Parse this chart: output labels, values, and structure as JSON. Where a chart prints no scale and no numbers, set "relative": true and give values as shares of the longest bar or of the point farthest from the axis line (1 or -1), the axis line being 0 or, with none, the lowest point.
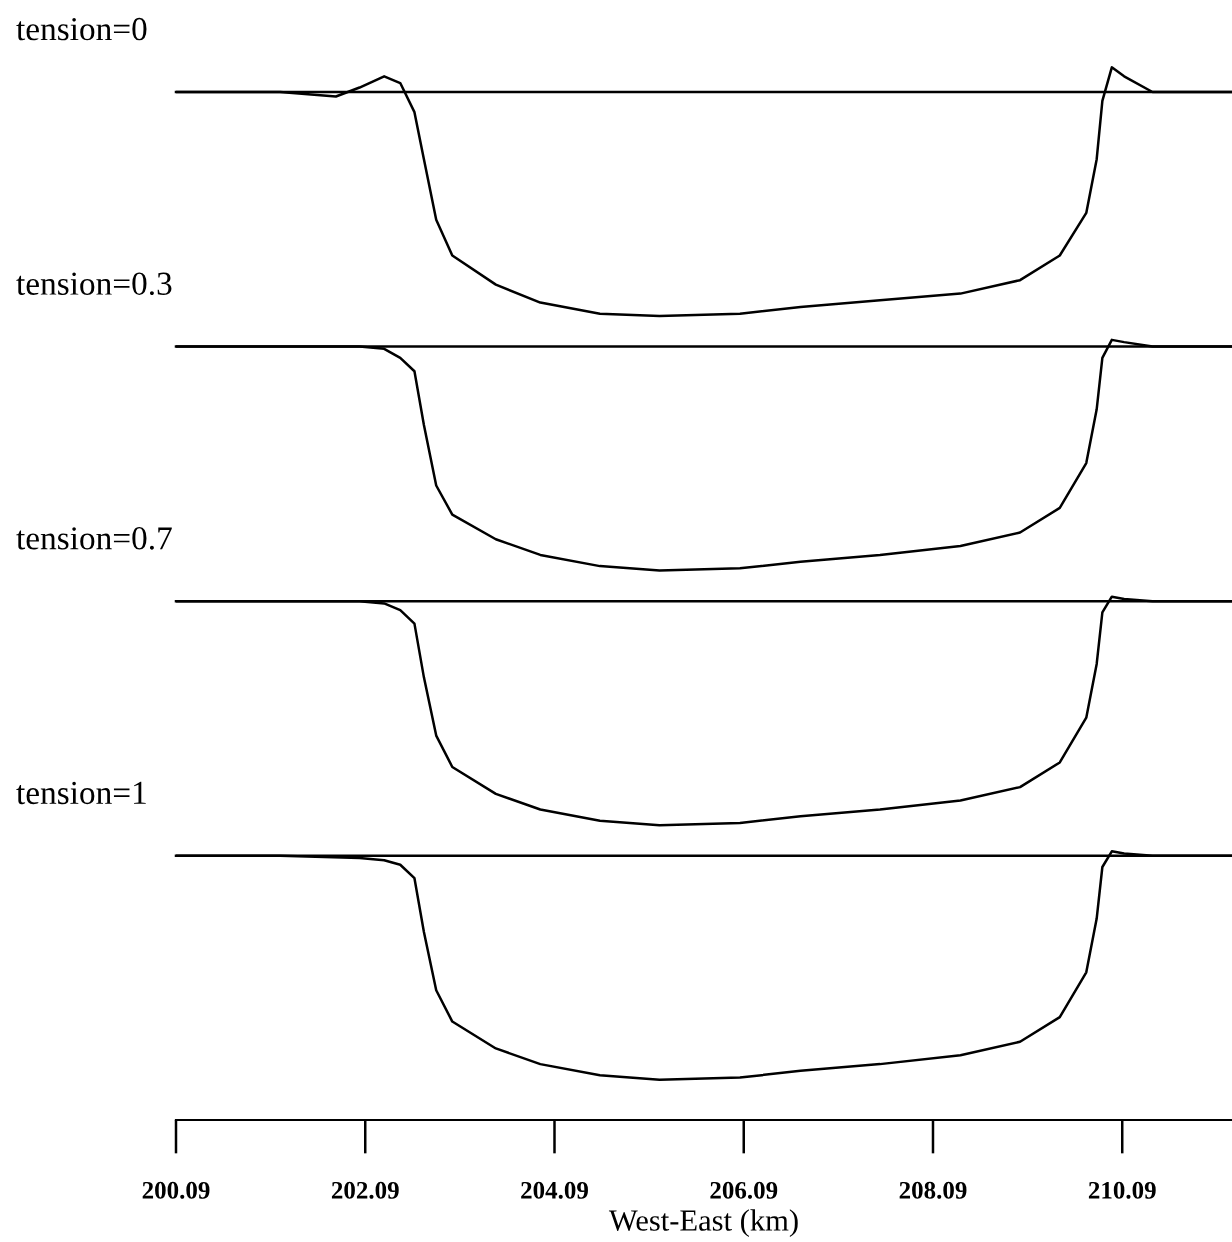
{
  "chart_data": [
    {
      "type": "line",
      "title": "tension=0",
      "relative": true,
      "color": "#000000",
      "xlim": [
        200.09,
        211.25
      ],
      "tick_labels": false,
      "x": [
        200.09,
        201.19,
        201.78,
        202.03,
        202.29,
        202.46,
        202.61,
        202.71,
        202.84,
        203.01,
        203.47,
        203.94,
        204.57,
        205.2,
        206.05,
        206.69,
        207.53,
        208.38,
        209.01,
        209.43,
        209.71,
        209.82,
        209.88,
        209.98,
        210.11,
        210.41,
        211.25
      ],
      "values": [
        0,
        0,
        -0.02,
        0.02,
        0.07,
        0.04,
        -0.09,
        -0.3,
        -0.57,
        -0.73,
        -0.86,
        -0.94,
        -0.99,
        -1,
        -0.99,
        -0.96,
        -0.93,
        -0.9,
        -0.84,
        -0.73,
        -0.54,
        -0.3,
        -0.04,
        0.11,
        0.07,
        0,
        0
      ]
    },
    {
      "type": "line",
      "title": "tension=0.3",
      "relative": true,
      "color": "#000000",
      "xlim": [
        200.09,
        211.25
      ],
      "tick_labels": false,
      "x": [
        200.09,
        201.19,
        202.03,
        202.29,
        202.46,
        202.61,
        202.71,
        202.84,
        203.01,
        203.47,
        203.94,
        204.57,
        205.2,
        206.05,
        206.69,
        207.53,
        208.38,
        209.01,
        209.43,
        209.71,
        209.82,
        209.88,
        209.98,
        210.11,
        210.41,
        211.25
      ],
      "values": [
        0,
        0,
        0,
        -0.01,
        -0.05,
        -0.11,
        -0.35,
        -0.62,
        -0.75,
        -0.86,
        -0.93,
        -0.98,
        -1,
        -0.99,
        -0.96,
        -0.93,
        -0.89,
        -0.83,
        -0.72,
        -0.52,
        -0.28,
        -0.05,
        0.03,
        0.02,
        0,
        0
      ]
    },
    {
      "type": "line",
      "title": "tension=0.7",
      "relative": true,
      "color": "#000000",
      "xlim": [
        200.09,
        211.25
      ],
      "tick_labels": false,
      "x": [
        200.09,
        201.19,
        202.03,
        202.29,
        202.46,
        202.61,
        202.71,
        202.84,
        203.01,
        203.47,
        203.94,
        204.57,
        205.2,
        206.05,
        206.69,
        207.53,
        208.38,
        209.01,
        209.43,
        209.71,
        209.82,
        209.88,
        209.98,
        210.11,
        210.41,
        211.25
      ],
      "values": [
        0,
        0,
        0,
        -0.01,
        -0.04,
        -0.1,
        -0.34,
        -0.6,
        -0.74,
        -0.86,
        -0.93,
        -0.98,
        -1,
        -0.99,
        -0.96,
        -0.93,
        -0.89,
        -0.83,
        -0.72,
        -0.52,
        -0.28,
        -0.05,
        0.02,
        0.01,
        0,
        0
      ]
    },
    {
      "type": "line",
      "title": "tension=1",
      "relative": true,
      "color": "#000000",
      "xlim": [
        200.09,
        211.25
      ],
      "xticks": [
        200.09,
        202.09,
        204.09,
        206.09,
        208.09,
        210.09
      ],
      "xlabel": "West-East (km)",
      "tick_labels": "x",
      "x": [
        200.09,
        201.19,
        202.03,
        202.29,
        202.46,
        202.61,
        202.71,
        202.84,
        203.01,
        203.47,
        203.94,
        204.57,
        205.2,
        206.05,
        206.69,
        207.53,
        208.38,
        209.01,
        209.43,
        209.71,
        209.82,
        209.88,
        209.98,
        210.11,
        210.41,
        211.25
      ],
      "values": [
        0,
        0,
        -0.01,
        -0.02,
        -0.04,
        -0.1,
        -0.34,
        -0.6,
        -0.74,
        -0.86,
        -0.93,
        -0.98,
        -1,
        -0.99,
        -0.96,
        -0.93,
        -0.89,
        -0.83,
        -0.72,
        -0.52,
        -0.28,
        -0.05,
        0.02,
        0.01,
        0,
        0
      ]
    }
  ]
}
